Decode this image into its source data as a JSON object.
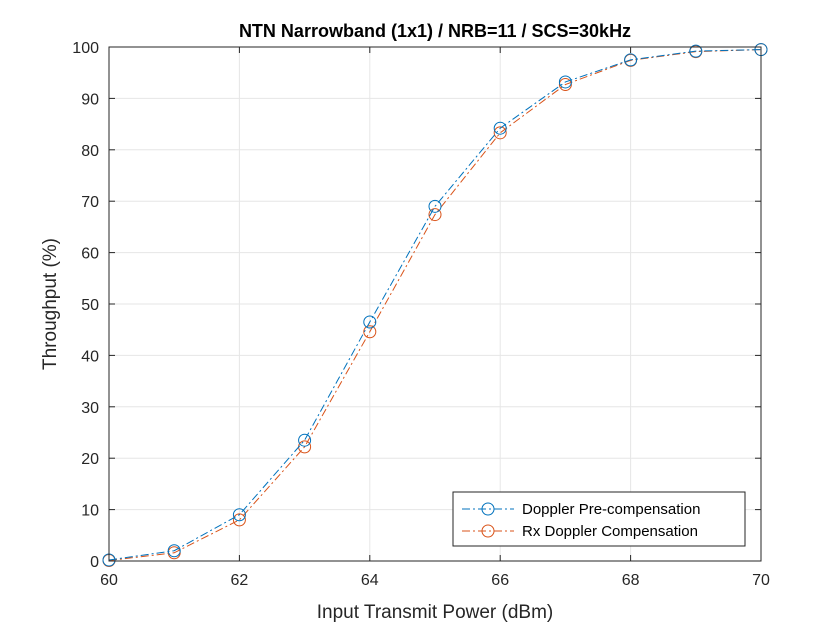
{
  "chart_data": {
    "type": "line",
    "title": "NTN Narrowband (1x1) / NRB=11 / SCS=30kHz",
    "xlabel": "Input Transmit Power (dBm)",
    "ylabel": "Throughput (%)",
    "xlim": [
      60,
      70
    ],
    "ylim": [
      0,
      100
    ],
    "xticks": [
      "60",
      "62",
      "64",
      "66",
      "68",
      "70"
    ],
    "yticks": [
      "0",
      "10",
      "20",
      "30",
      "40",
      "50",
      "60",
      "70",
      "80",
      "90",
      "100"
    ],
    "x_tick_values": [
      60,
      62,
      64,
      66,
      68,
      70
    ],
    "y_tick_values": [
      0,
      10,
      20,
      30,
      40,
      50,
      60,
      70,
      80,
      90,
      100
    ],
    "grid": true,
    "legend_position": "bottom-right",
    "series": [
      {
        "name": "Doppler Pre-compensation",
        "color": "#0072BD",
        "marker": "circle",
        "line_style": "dash-dot",
        "x": [
          60,
          61,
          62,
          63,
          64,
          65,
          66,
          67,
          68,
          69,
          70
        ],
        "y": [
          0.2,
          2.0,
          9.0,
          23.5,
          46.5,
          69.0,
          84.2,
          93.2,
          97.5,
          99.2,
          99.5
        ]
      },
      {
        "name": "Rx Doppler Compensation",
        "color": "#D95319",
        "marker": "circle",
        "line_style": "dash-dot",
        "x": [
          60,
          61,
          62,
          63,
          64,
          65,
          66,
          67,
          68,
          69,
          70
        ],
        "y": [
          0.1,
          1.6,
          8.0,
          22.2,
          44.6,
          67.4,
          83.3,
          92.7,
          97.4,
          99.1,
          99.5
        ]
      }
    ]
  }
}
